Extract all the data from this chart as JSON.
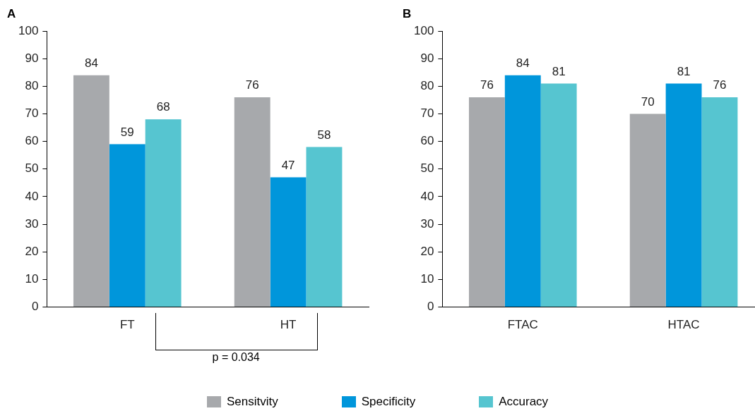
{
  "chart_data": [
    {
      "type": "bar",
      "title": "A",
      "categories": [
        "FT",
        "HT"
      ],
      "series": [
        {
          "name": "Sensitvity",
          "color": "#a7a9ac",
          "values": [
            84,
            76
          ]
        },
        {
          "name": "Specificity",
          "color": "#0096db",
          "values": [
            59,
            47
          ]
        },
        {
          "name": "Accuracy",
          "color": "#56c5d0",
          "values": [
            68,
            58
          ]
        }
      ],
      "ylim": [
        0,
        100
      ],
      "yticks": [
        0,
        10,
        20,
        30,
        40,
        50,
        60,
        70,
        80,
        90,
        100
      ],
      "grid": false,
      "data_labels": true,
      "legend": "bottom",
      "annotations": [
        "p = 0.034"
      ]
    },
    {
      "type": "bar",
      "title": "B",
      "categories": [
        "FTAC",
        "HTAC"
      ],
      "series": [
        {
          "name": "Sensitvity",
          "color": "#a7a9ac",
          "values": [
            76,
            70
          ]
        },
        {
          "name": "Specificity",
          "color": "#0096db",
          "values": [
            84,
            81
          ]
        },
        {
          "name": "Accuracy",
          "color": "#56c5d0",
          "values": [
            81,
            76
          ]
        }
      ],
      "ylim": [
        0,
        100
      ],
      "yticks": [
        0,
        10,
        20,
        30,
        40,
        50,
        60,
        70,
        80,
        90,
        100
      ],
      "grid": false,
      "data_labels": true,
      "legend": "bottom"
    }
  ]
}
